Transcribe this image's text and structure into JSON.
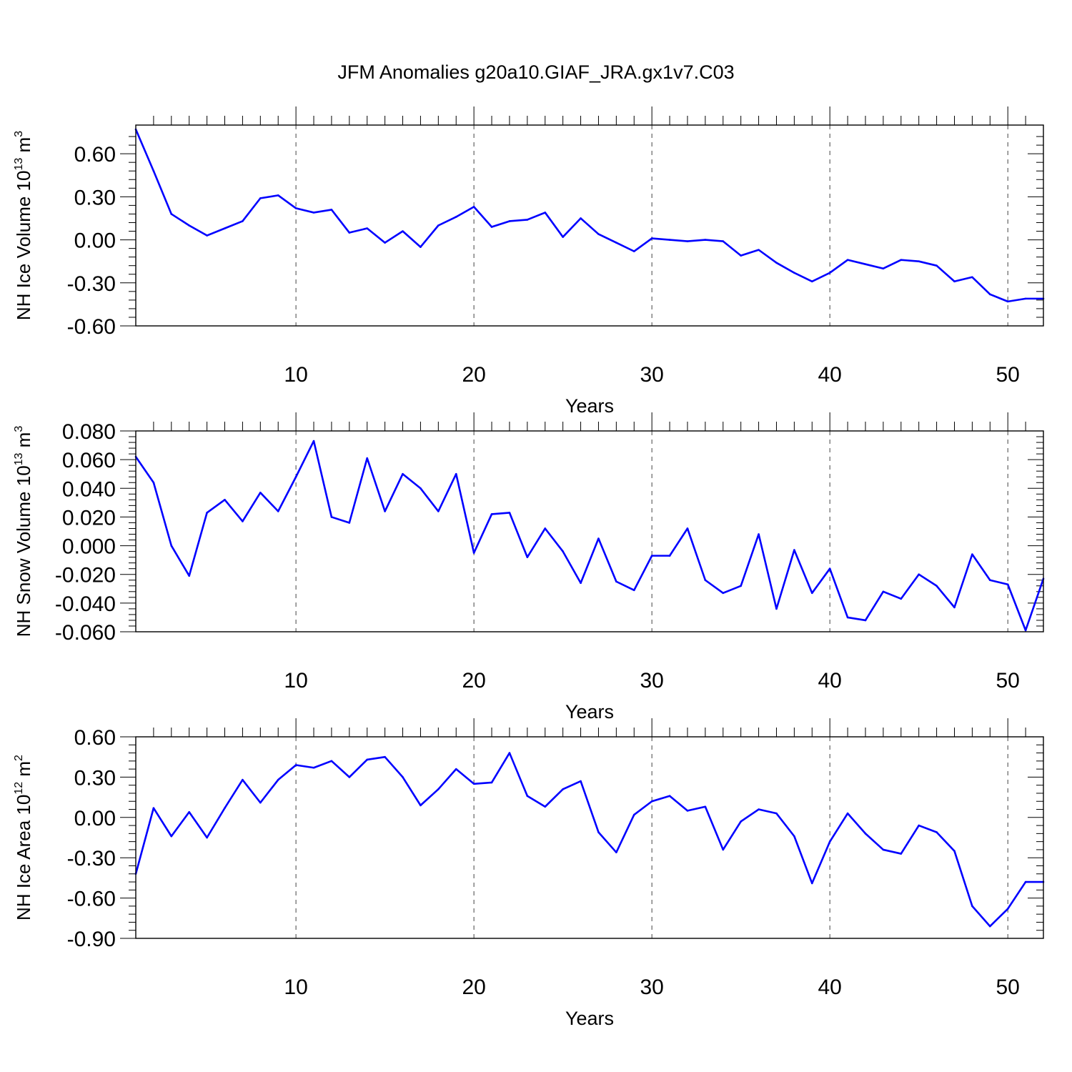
{
  "title": "JFM Anomalies g20a10.GIAF_JRA.gx1v7.C03",
  "colors": {
    "line": "#0000ff",
    "axis": "#000000",
    "grid": "#444444"
  },
  "chart_data": [
    {
      "type": "line",
      "xlabel": "Years",
      "ylabel": "NH Ice Volume 10",
      "ylabel_sup": "13",
      "ylabel_unit": "m",
      "ylabel_unit_sup": "3",
      "xlim": [
        1,
        52
      ],
      "ylim": [
        -0.6,
        0.8
      ],
      "xticks": [
        10,
        20,
        30,
        40,
        50
      ],
      "yticks": [
        0.6,
        0.3,
        0.0,
        -0.3,
        -0.6
      ],
      "ytick_labels": [
        "0.60",
        "0.30",
        "0.00",
        "-0.30",
        "-0.60"
      ],
      "grid_x": [
        10,
        20,
        30,
        40,
        50
      ],
      "x": [
        1,
        2,
        3,
        4,
        5,
        6,
        7,
        8,
        9,
        10,
        11,
        12,
        13,
        14,
        15,
        16,
        17,
        18,
        19,
        20,
        21,
        22,
        23,
        24,
        25,
        26,
        27,
        28,
        29,
        30,
        31,
        32,
        33,
        34,
        35,
        36,
        37,
        38,
        39,
        40,
        41,
        42,
        43,
        44,
        45,
        46,
        47,
        48,
        49,
        50,
        51,
        52
      ],
      "series": [
        {
          "name": "NH Ice Volume",
          "values": [
            0.77,
            0.48,
            0.18,
            0.1,
            0.03,
            0.08,
            0.13,
            0.29,
            0.31,
            0.22,
            0.19,
            0.21,
            0.05,
            0.08,
            -0.02,
            0.06,
            -0.05,
            0.1,
            0.16,
            0.23,
            0.09,
            0.13,
            0.14,
            0.19,
            0.02,
            0.15,
            0.04,
            -0.02,
            -0.08,
            0.01,
            0.0,
            -0.01,
            0.0,
            -0.01,
            -0.11,
            -0.07,
            -0.16,
            -0.23,
            -0.29,
            -0.23,
            -0.14,
            -0.17,
            -0.2,
            -0.14,
            -0.15,
            -0.18,
            -0.29,
            -0.26,
            -0.38,
            -0.43,
            -0.41,
            -0.41
          ]
        }
      ]
    },
    {
      "type": "line",
      "xlabel": "Years",
      "ylabel": "NH Snow Volume 10",
      "ylabel_sup": "13",
      "ylabel_unit": "m",
      "ylabel_unit_sup": "3",
      "xlim": [
        1,
        52
      ],
      "ylim": [
        -0.06,
        0.08
      ],
      "xticks": [
        10,
        20,
        30,
        40,
        50
      ],
      "yticks": [
        0.08,
        0.06,
        0.04,
        0.02,
        0.0,
        -0.02,
        -0.04,
        -0.06
      ],
      "ytick_labels": [
        "0.080",
        "0.060",
        "0.040",
        "0.020",
        "0.000",
        "-0.020",
        "-0.040",
        "-0.060"
      ],
      "grid_x": [
        10,
        20,
        30,
        40,
        50
      ],
      "x": [
        1,
        2,
        3,
        4,
        5,
        6,
        7,
        8,
        9,
        10,
        11,
        12,
        13,
        14,
        15,
        16,
        17,
        18,
        19,
        20,
        21,
        22,
        23,
        24,
        25,
        26,
        27,
        28,
        29,
        30,
        31,
        32,
        33,
        34,
        35,
        36,
        37,
        38,
        39,
        40,
        41,
        42,
        43,
        44,
        45,
        46,
        47,
        48,
        49,
        50,
        51,
        52
      ],
      "series": [
        {
          "name": "NH Snow Volume",
          "values": [
            0.062,
            0.044,
            0.0,
            -0.021,
            0.023,
            0.032,
            0.017,
            0.037,
            0.024,
            0.048,
            0.073,
            0.02,
            0.016,
            0.061,
            0.024,
            0.05,
            0.04,
            0.024,
            0.05,
            -0.005,
            0.022,
            0.023,
            -0.008,
            0.012,
            -0.004,
            -0.026,
            0.005,
            -0.025,
            -0.031,
            -0.007,
            -0.007,
            0.012,
            -0.024,
            -0.033,
            -0.028,
            0.008,
            -0.044,
            -0.003,
            -0.033,
            -0.016,
            -0.05,
            -0.052,
            -0.032,
            -0.037,
            -0.02,
            -0.028,
            -0.043,
            -0.006,
            -0.024,
            -0.027,
            -0.059,
            -0.023
          ]
        }
      ]
    },
    {
      "type": "line",
      "xlabel": "Years",
      "ylabel": "NH Ice Area 10",
      "ylabel_sup": "12",
      "ylabel_unit": "m",
      "ylabel_unit_sup": "2",
      "xlim": [
        1,
        52
      ],
      "ylim": [
        -0.9,
        0.6
      ],
      "xticks": [
        10,
        20,
        30,
        40,
        50
      ],
      "yticks": [
        0.6,
        0.3,
        0.0,
        -0.3,
        -0.6,
        -0.9
      ],
      "ytick_labels": [
        "0.60",
        "0.30",
        "0.00",
        "-0.30",
        "-0.60",
        "-0.90"
      ],
      "grid_x": [
        10,
        20,
        30,
        40,
        50
      ],
      "x": [
        1,
        2,
        3,
        4,
        5,
        6,
        7,
        8,
        9,
        10,
        11,
        12,
        13,
        14,
        15,
        16,
        17,
        18,
        19,
        20,
        21,
        22,
        23,
        24,
        25,
        26,
        27,
        28,
        29,
        30,
        31,
        32,
        33,
        34,
        35,
        36,
        37,
        38,
        39,
        40,
        41,
        42,
        43,
        44,
        45,
        46,
        47,
        48,
        49,
        50,
        51,
        52
      ],
      "series": [
        {
          "name": "NH Ice Area",
          "values": [
            -0.42,
            0.07,
            -0.14,
            0.04,
            -0.15,
            0.07,
            0.28,
            0.11,
            0.28,
            0.39,
            0.37,
            0.42,
            0.3,
            0.43,
            0.45,
            0.3,
            0.09,
            0.21,
            0.36,
            0.25,
            0.26,
            0.48,
            0.16,
            0.08,
            0.21,
            0.27,
            -0.11,
            -0.26,
            0.02,
            0.12,
            0.16,
            0.05,
            0.08,
            -0.24,
            -0.03,
            0.06,
            0.03,
            -0.14,
            -0.49,
            -0.18,
            0.03,
            -0.12,
            -0.24,
            -0.27,
            -0.06,
            -0.11,
            -0.25,
            -0.66,
            -0.81,
            -0.68,
            -0.48,
            -0.48
          ]
        }
      ]
    }
  ]
}
